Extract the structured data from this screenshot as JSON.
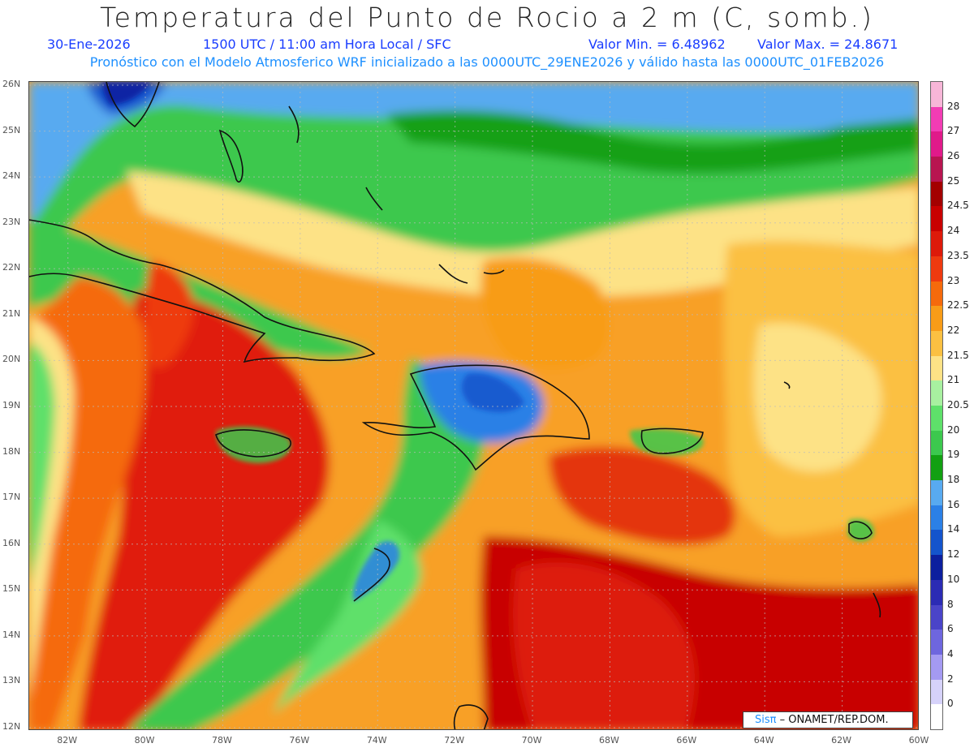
{
  "title": "Temperatura del Punto de Rocio a 2 m (C, somb.)",
  "header": {
    "date": "30-Ene-2026",
    "time": "1500 UTC / 11:00 am Hora Local / SFC",
    "min": "Valor Min. = 6.48962",
    "max": "Valor Max. = 24.8671",
    "forecast": "Pronóstico con el Modelo Atmosferico WRF inicializado a las 0000UTC_29ENE2026 y válido hasta las  0000UTC_01FEB2026"
  },
  "axes": {
    "lat_labels": [
      "26N",
      "25N",
      "24N",
      "23N",
      "22N",
      "21N",
      "20N",
      "19N",
      "18N",
      "17N",
      "16N",
      "15N",
      "14N",
      "13N",
      "12N"
    ],
    "lon_labels": [
      "82W",
      "80W",
      "78W",
      "76W",
      "74W",
      "72W",
      "70W",
      "68W",
      "66W",
      "64W",
      "62W",
      "60W"
    ]
  },
  "colorbar": {
    "labels": [
      "28",
      "27",
      "26",
      "25",
      "24.5",
      "24",
      "23.5",
      "23",
      "22.5",
      "22",
      "21.5",
      "21",
      "20.5",
      "20",
      "19",
      "18",
      "16",
      "14",
      "12",
      "10",
      "8",
      "6",
      "4",
      "2",
      "0"
    ],
    "colors": [
      "#f7b6d8",
      "#f23cb4",
      "#e01a8a",
      "#b81550",
      "#a30000",
      "#c80000",
      "#dd1a0a",
      "#ee3a10",
      "#f56a0c",
      "#f89c18",
      "#fbc042",
      "#fde286",
      "#a8f0a0",
      "#5ee06a",
      "#3cc84e",
      "#12a012",
      "#58aaf0",
      "#2b80e6",
      "#1454cc",
      "#0c1f9e",
      "#2b2bb4",
      "#4a44c8",
      "#6e66de",
      "#a49af2",
      "#d6d2fa",
      "#ffffff"
    ]
  },
  "credit": {
    "brand": "Sisπ",
    "text": "– ONAMET/REP.DOM."
  },
  "field": {
    "min": 6.48962,
    "max": 24.8671,
    "units": "C"
  }
}
